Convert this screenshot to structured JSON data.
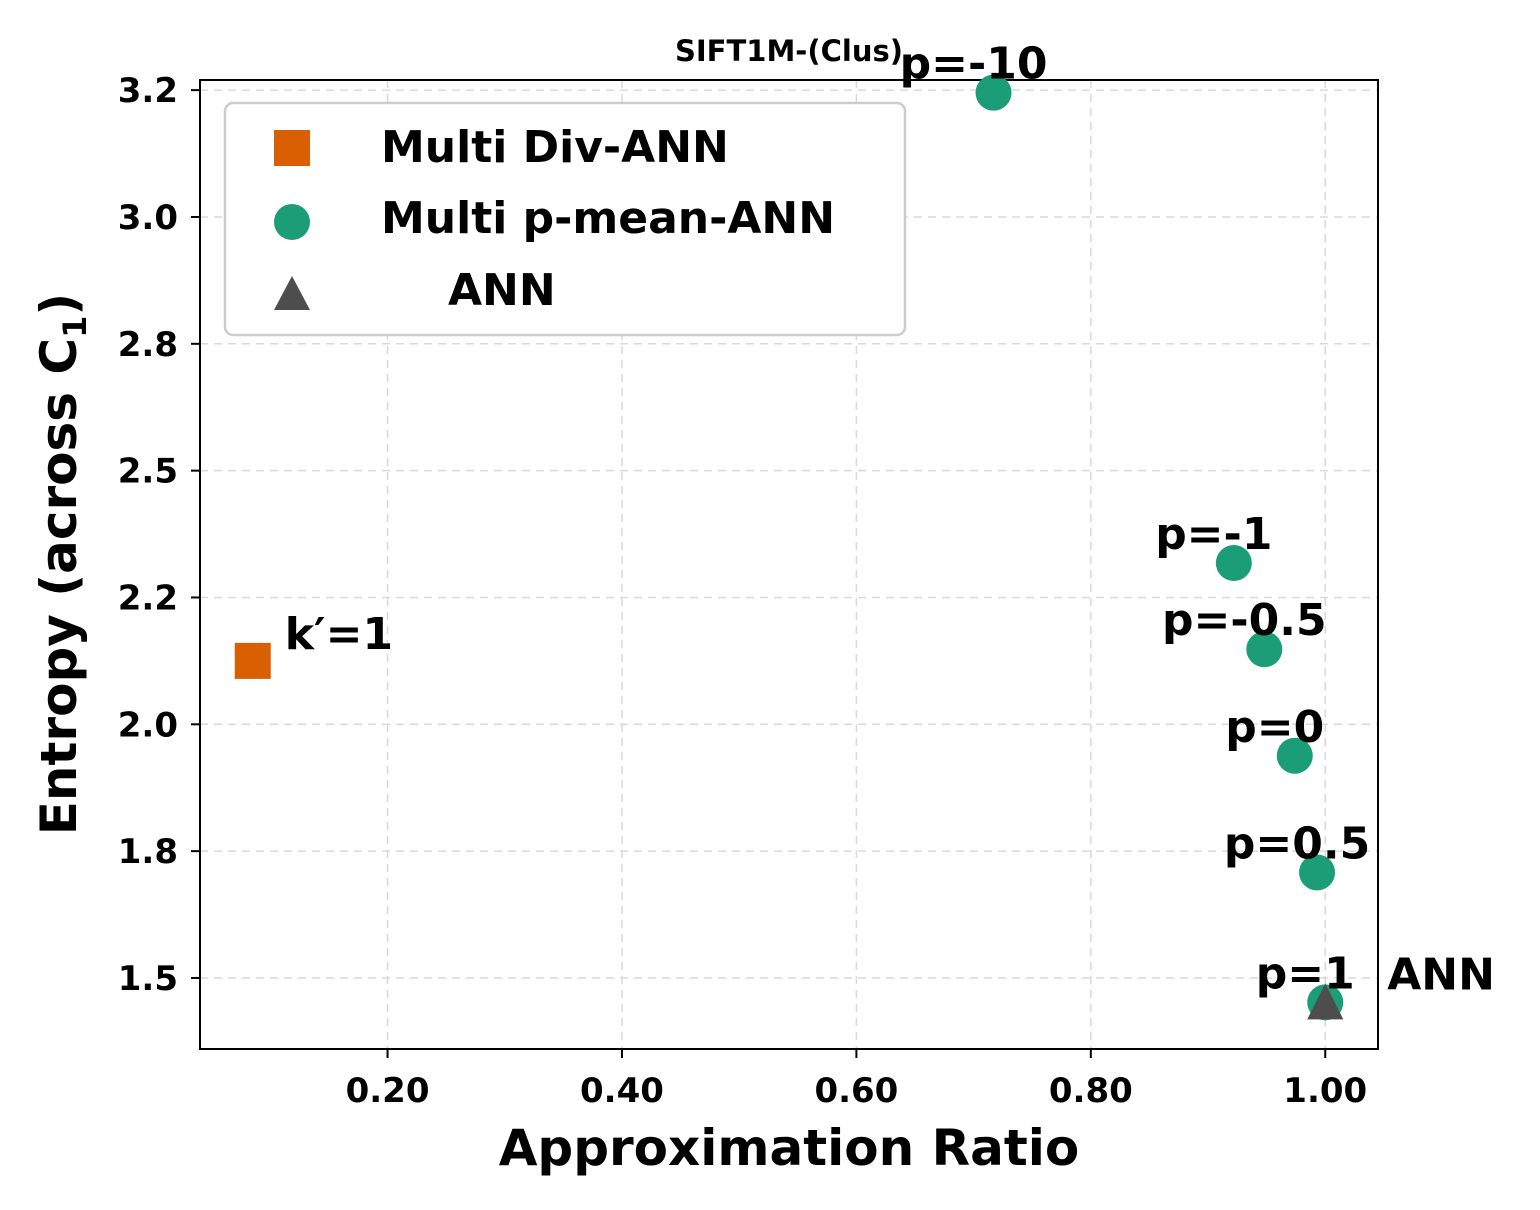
{
  "chart_data": {
    "type": "scatter",
    "title": "SIFT1M-(Clus)",
    "xlabel": "Approximation Ratio",
    "ylabel": "Entropy (across C",
    "ylabel_subscript": "1",
    "ylabel_close": ")",
    "xlim": [
      0.04,
      1.045
    ],
    "ylim": [
      1.36,
      3.27
    ],
    "x_ticks": [
      0.2,
      0.4,
      0.6,
      0.8,
      1.0
    ],
    "x_tick_labels": [
      "0.20",
      "0.40",
      "0.60",
      "0.80",
      "1.00"
    ],
    "y_ticks": [
      1.5,
      1.75,
      2.0,
      2.25,
      2.5,
      2.75,
      3.0,
      3.25
    ],
    "y_tick_labels": [
      "1.5",
      "1.8",
      "2.0",
      "2.2",
      "2.5",
      "2.8",
      "3.0",
      "3.2"
    ],
    "grid": true,
    "legend_position": "top-left",
    "series": [
      {
        "name": "Multi Div-ANN",
        "marker": "square",
        "color": "#d95f02",
        "points": [
          {
            "x": 0.085,
            "y": 2.125,
            "label": "k′=1"
          }
        ]
      },
      {
        "name": "Multi p-mean-ANN",
        "marker": "circle",
        "color": "#1b9e77",
        "points": [
          {
            "x": 0.717,
            "y": 3.245,
            "label": "p=-10"
          },
          {
            "x": 0.922,
            "y": 2.318,
            "label": "p=-1"
          },
          {
            "x": 0.948,
            "y": 2.148,
            "label": "p=-0.5"
          },
          {
            "x": 0.974,
            "y": 1.938,
            "label": "p=0"
          },
          {
            "x": 0.993,
            "y": 1.708,
            "label": "p=0.5"
          },
          {
            "x": 1.0,
            "y": 1.452,
            "label": "p=1"
          }
        ]
      },
      {
        "name": "ANN",
        "marker": "triangle",
        "color": "#4d4d4d",
        "points": [
          {
            "x": 1.0,
            "y": 1.452,
            "label": "ANN"
          }
        ]
      }
    ]
  }
}
